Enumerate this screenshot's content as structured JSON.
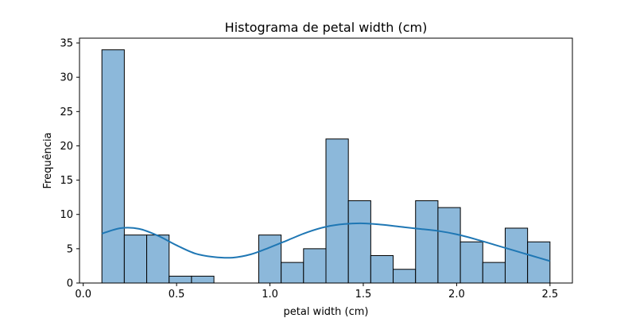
{
  "chart_data": {
    "type": "bar",
    "title": "Histograma de petal width (cm)",
    "xlabel": "petal width (cm)",
    "ylabel": "Frequência",
    "xlim": [
      -0.02,
      2.62
    ],
    "ylim": [
      0,
      35.7
    ],
    "xticks": [
      "0.0",
      "0.5",
      "1.0",
      "1.5",
      "2.0",
      "2.5"
    ],
    "yticks": [
      "0",
      "5",
      "10",
      "15",
      "20",
      "25",
      "30",
      "35"
    ],
    "bins": [
      {
        "start": 0.1,
        "end": 0.22,
        "count": 34
      },
      {
        "start": 0.22,
        "end": 0.34,
        "count": 7
      },
      {
        "start": 0.34,
        "end": 0.46,
        "count": 7
      },
      {
        "start": 0.46,
        "end": 0.58,
        "count": 1
      },
      {
        "start": 0.58,
        "end": 0.7,
        "count": 1
      },
      {
        "start": 0.7,
        "end": 0.82,
        "count": 0
      },
      {
        "start": 0.82,
        "end": 0.94,
        "count": 0
      },
      {
        "start": 0.94,
        "end": 1.06,
        "count": 7
      },
      {
        "start": 1.06,
        "end": 1.18,
        "count": 3
      },
      {
        "start": 1.18,
        "end": 1.3,
        "count": 5
      },
      {
        "start": 1.3,
        "end": 1.42,
        "count": 21
      },
      {
        "start": 1.42,
        "end": 1.54,
        "count": 12
      },
      {
        "start": 1.54,
        "end": 1.66,
        "count": 4
      },
      {
        "start": 1.66,
        "end": 1.78,
        "count": 2
      },
      {
        "start": 1.78,
        "end": 1.9,
        "count": 12
      },
      {
        "start": 1.9,
        "end": 2.02,
        "count": 11
      },
      {
        "start": 2.02,
        "end": 2.14,
        "count": 6
      },
      {
        "start": 2.14,
        "end": 2.26,
        "count": 3
      },
      {
        "start": 2.26,
        "end": 2.38,
        "count": 8
      },
      {
        "start": 2.38,
        "end": 2.5,
        "count": 6
      }
    ],
    "kde": {
      "x": [
        0.1,
        0.2,
        0.3,
        0.4,
        0.5,
        0.6,
        0.7,
        0.8,
        0.9,
        1.0,
        1.1,
        1.2,
        1.3,
        1.4,
        1.5,
        1.6,
        1.7,
        1.8,
        1.9,
        2.0,
        2.1,
        2.2,
        2.3,
        2.4,
        2.5
      ],
      "y": [
        7.2,
        8.0,
        7.9,
        6.9,
        5.5,
        4.3,
        3.8,
        3.7,
        4.2,
        5.2,
        6.3,
        7.4,
        8.2,
        8.6,
        8.7,
        8.5,
        8.2,
        7.9,
        7.6,
        7.1,
        6.4,
        5.6,
        4.8,
        4.0,
        3.2
      ]
    },
    "colors": {
      "bar_fill": "#8cb8da",
      "bar_edge": "#000000",
      "kde_line": "#1f77b4"
    },
    "grid": false,
    "legend": "none"
  }
}
